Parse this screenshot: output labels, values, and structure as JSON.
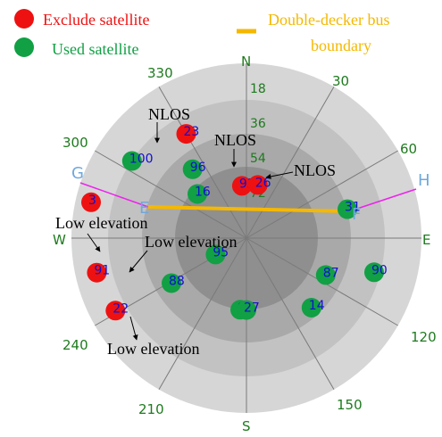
{
  "legend": {
    "exclude_label": "Exclude satellite",
    "used_label": "Used satellite",
    "bus_label_line1": "Double-decker bus",
    "bus_label_line2": "boundary"
  },
  "colors": {
    "exclude": "#ee1111",
    "used": "#11a044",
    "bus": "#f5b800",
    "azimuth_text": "#1e7a1e",
    "prn_text": "#1010d0",
    "point_label": "#6fa8dc",
    "guide_line": "#ee22ee"
  },
  "sky": {
    "directions": {
      "north": "N",
      "east": "E",
      "south": "S",
      "west": "W"
    },
    "azimuth_labels": [
      "30",
      "60",
      "120",
      "150",
      "210",
      "240",
      "300",
      "330"
    ],
    "elevation_labels": [
      "18",
      "36",
      "54",
      "72"
    ]
  },
  "satellites": [
    {
      "prn": "23",
      "status": "exclude",
      "azimuth": 330,
      "elevation": 28
    },
    {
      "prn": "93",
      "status": "exclude",
      "azimuth": 355,
      "elevation": 63
    },
    {
      "prn": "26",
      "status": "exclude",
      "azimuth": 12,
      "elevation": 62
    },
    {
      "prn": "3",
      "status": "exclude",
      "azimuth": 283,
      "elevation": 8
    },
    {
      "prn": "91",
      "status": "exclude",
      "azimuth": 257,
      "elevation": 11
    },
    {
      "prn": "22",
      "status": "exclude",
      "azimuth": 241,
      "elevation": 13
    },
    {
      "prn": "100",
      "status": "used",
      "azimuth": 304,
      "elevation": 19
    },
    {
      "prn": "96",
      "status": "used",
      "azimuth": 322,
      "elevation": 45
    },
    {
      "prn": "16",
      "status": "used",
      "azimuth": 312,
      "elevation": 56
    },
    {
      "prn": "31",
      "status": "used",
      "azimuth": 74,
      "elevation": 36
    },
    {
      "prn": "95",
      "status": "used",
      "azimuth": 242,
      "elevation": 72
    },
    {
      "prn": "88",
      "status": "used",
      "azimuth": 239,
      "elevation": 45
    },
    {
      "prn": "87",
      "status": "used",
      "azimuth": 115,
      "elevation": 45
    },
    {
      "prn": "90",
      "status": "used",
      "azimuth": 105,
      "elevation": 22
    },
    {
      "prn": "14",
      "status": "used",
      "azimuth": 137,
      "elevation": 41
    },
    {
      "prn": "92",
      "status": "used",
      "azimuth": 185,
      "elevation": 53
    },
    {
      "prn": "27",
      "status": "used",
      "azimuth": 180,
      "elevation": 53
    }
  ],
  "annotations": {
    "nlos_1": "NLOS",
    "nlos_2": "NLOS",
    "nlos_3": "NLOS",
    "low_elev_1": "Low elevation",
    "low_elev_2": "Low elevation",
    "low_elev_3": "Low elevation"
  },
  "points": {
    "G": "G",
    "H": "H",
    "E": "E",
    "F": "F"
  }
}
